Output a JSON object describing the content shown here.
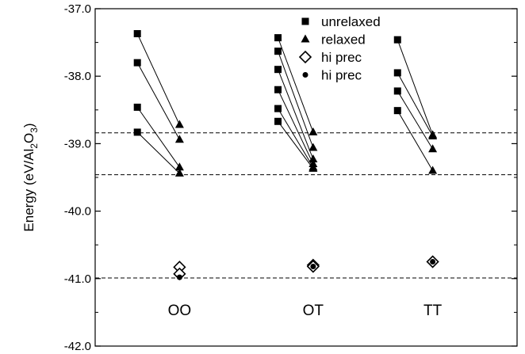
{
  "chart_data": {
    "type": "scatter",
    "ylabel_parts": [
      "Energy (eV/Al",
      "2",
      "O",
      "3",
      ")"
    ],
    "ylim": [
      -42.0,
      -37.0
    ],
    "yticks": [
      "-42.0",
      "-41.0",
      "-40.0",
      "-39.0",
      "-38.0",
      "-37.0"
    ],
    "ytick_values": [
      -42.0,
      -41.0,
      -40.0,
      -39.0,
      -38.0,
      -37.0
    ],
    "xlim": [
      0,
      6
    ],
    "categories": [
      "OO",
      "OT",
      "TT"
    ],
    "category_x": [
      1.2,
      3.1,
      4.8
    ],
    "legend": [
      "unrelaxed",
      "relaxed",
      "hi prec",
      "hi prec"
    ],
    "hlines": [
      -38.84,
      -39.46,
      -40.99
    ],
    "groups": [
      {
        "name": "OO",
        "unrelaxed_x": 0.6,
        "relaxed_x": 1.2,
        "pairs": [
          [
            -37.37,
            -38.72
          ],
          [
            -37.8,
            -38.94
          ],
          [
            -38.46,
            -39.35
          ],
          [
            -38.83,
            -39.44
          ]
        ],
        "hi_prec_diamond": [
          [
            1.2,
            -40.83
          ],
          [
            1.2,
            -40.93
          ]
        ],
        "hi_prec_dot": [
          [
            1.2,
            -40.98
          ]
        ]
      },
      {
        "name": "OT",
        "unrelaxed_x": 2.6,
        "relaxed_x": 3.1,
        "pairs": [
          [
            -37.43,
            -38.83
          ],
          [
            -37.63,
            -39.06
          ],
          [
            -37.9,
            -39.23
          ],
          [
            -38.2,
            -39.3
          ],
          [
            -38.48,
            -39.35
          ],
          [
            -38.67,
            -39.37
          ]
        ],
        "hi_prec_diamond": [
          [
            3.1,
            -40.8
          ],
          [
            3.1,
            -40.82
          ]
        ],
        "hi_prec_dot": [
          [
            3.1,
            -40.82
          ]
        ]
      },
      {
        "name": "TT",
        "unrelaxed_x": 4.3,
        "relaxed_x": 4.8,
        "pairs": [
          [
            -37.46,
            -38.87
          ],
          [
            -37.95,
            -38.89
          ],
          [
            -38.22,
            -39.08
          ],
          [
            -38.51,
            -39.4
          ]
        ],
        "hi_prec_diamond": [
          [
            4.8,
            -40.75
          ]
        ],
        "hi_prec_dot": [
          [
            4.8,
            -40.75
          ]
        ]
      }
    ]
  }
}
